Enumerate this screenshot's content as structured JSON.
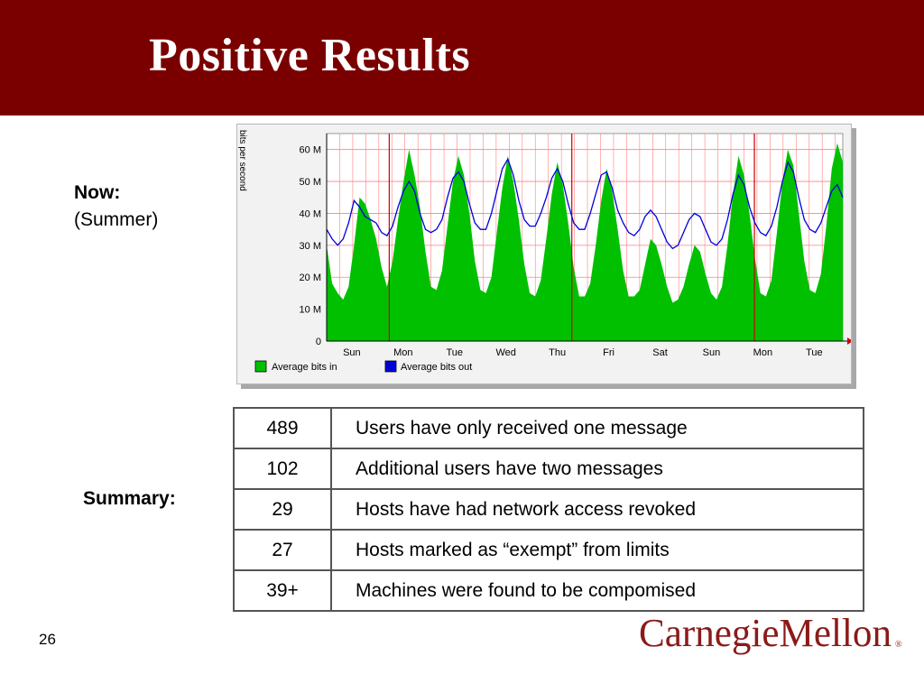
{
  "slide": {
    "title": "Positive Results",
    "now_label": "Now:",
    "now_sub": "(Summer)",
    "summary_label": "Summary:",
    "page_number": "26",
    "logo_text": "CarnegieMellon"
  },
  "colors": {
    "title_bar": "#7a0000",
    "logo": "#8b1a1a",
    "bits_in": "#00c000",
    "bits_out": "#0000dd",
    "grid": "#ff8080",
    "day_marker": "#cc0000"
  },
  "summary": [
    {
      "value": "489",
      "text": "Users have only received one message"
    },
    {
      "value": "102",
      "text": "Additional users have two messages"
    },
    {
      "value": "29",
      "text": "Hosts have had network access revoked"
    },
    {
      "value": "27",
      "text": "Hosts marked as “exempt” from limits"
    },
    {
      "value": "39+",
      "text": "Machines were found to be compomised"
    }
  ],
  "chart_data": {
    "type": "area",
    "ylabel": "bits per second",
    "ylim": [
      0,
      65000000
    ],
    "y_ticks": [
      0,
      10000000,
      20000000,
      30000000,
      40000000,
      50000000,
      60000000
    ],
    "y_tick_labels": [
      "0",
      "10 M",
      "20 M",
      "30 M",
      "40 M",
      "50 M",
      "60 M"
    ],
    "x_tick_labels": [
      "Sun",
      "Mon",
      "Tue",
      "Wed",
      "Thu",
      "Fri",
      "Sat",
      "Sun",
      "Mon",
      "Tue"
    ],
    "grid": true,
    "legend": "bottom-left",
    "series": [
      {
        "name": "Average bits in",
        "type": "area",
        "color": "#00c000",
        "values": [
          30,
          18,
          15,
          13,
          17,
          30,
          45,
          43,
          38,
          32,
          23,
          17,
          25,
          38,
          50,
          60,
          52,
          42,
          28,
          17,
          16,
          22,
          36,
          50,
          58,
          52,
          40,
          25,
          16,
          15,
          20,
          34,
          48,
          58,
          50,
          38,
          24,
          15,
          14,
          19,
          32,
          46,
          56,
          49,
          37,
          23,
          14,
          14,
          18,
          30,
          44,
          54,
          47,
          35,
          22,
          14,
          14,
          16,
          24,
          32,
          30,
          24,
          17,
          12,
          13,
          17,
          24,
          30,
          28,
          21,
          15,
          13,
          17,
          30,
          46,
          58,
          52,
          40,
          26,
          15,
          14,
          19,
          34,
          50,
          60,
          55,
          40,
          25,
          16,
          15,
          21,
          36,
          54,
          62,
          56
        ]
      },
      {
        "name": "Average bits out",
        "type": "line",
        "color": "#0000dd",
        "values": [
          35,
          32,
          30,
          32,
          37,
          44,
          42,
          39,
          38,
          37,
          34,
          33,
          36,
          42,
          47,
          50,
          47,
          40,
          35,
          34,
          35,
          38,
          45,
          51,
          53,
          50,
          43,
          37,
          35,
          35,
          40,
          47,
          54,
          57,
          52,
          44,
          38,
          36,
          36,
          40,
          45,
          51,
          54,
          50,
          43,
          37,
          35,
          35,
          40,
          46,
          52,
          53,
          48,
          41,
          37,
          34,
          33,
          35,
          39,
          41,
          39,
          35,
          31,
          29,
          30,
          34,
          38,
          40,
          39,
          35,
          31,
          30,
          32,
          38,
          46,
          52,
          49,
          42,
          37,
          34,
          33,
          36,
          42,
          50,
          56,
          53,
          45,
          38,
          35,
          34,
          37,
          42,
          47,
          49,
          45
        ]
      }
    ],
    "values_unit": "M bits per second",
    "samples_per_day": 9.5
  }
}
